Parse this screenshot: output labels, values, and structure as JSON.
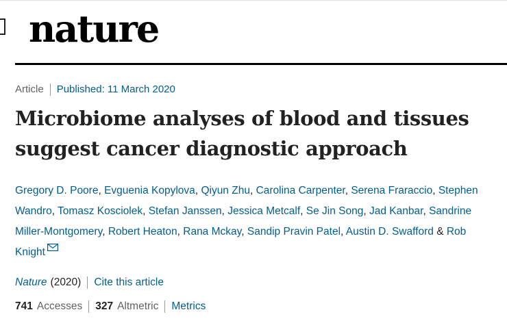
{
  "header": {
    "logo_text": "nature"
  },
  "article": {
    "type": "Article",
    "published": "Published: 11 March 2020",
    "title_line1": "Microbiome analyses of blood and tissues",
    "title_line2": "suggest cancer diagnostic approach",
    "authors": [
      "Gregory D. Poore",
      "Evguenia Kopylova",
      "Qiyun Zhu",
      "Carolina Carpenter",
      "Serena Fraraccio",
      "Stephen Wandro",
      "Tomasz Kosciolek",
      "Stefan Janssen",
      "Jessica Metcalf",
      "Se Jin Song",
      "Jad Kanbar",
      "Sandrine Miller-Montgomery",
      "Robert Heaton",
      "Rana Mckay",
      "Sandip Pravin Patel",
      "Austin D. Swafford",
      "Rob Knight"
    ],
    "author_conjunction": "&",
    "journal": "Nature",
    "year": "(2020)",
    "cite_label": "Cite this article",
    "accesses_count": "741",
    "accesses_label": "Accesses",
    "altmetric_count": "327",
    "altmetric_label": "Altmetric",
    "metrics_label": "Metrics"
  },
  "icons": {
    "corresponding_author": "envelope-icon"
  },
  "colors": {
    "link": "#025e8d",
    "text": "#222222",
    "muted": "#626262"
  }
}
